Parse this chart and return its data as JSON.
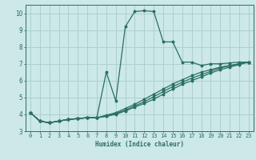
{
  "xlabel": "Humidex (Indice chaleur)",
  "bg_color": "#cce8e8",
  "grid_color": "#aacccc",
  "line_color": "#2a7060",
  "xlim": [
    -0.5,
    23.5
  ],
  "ylim": [
    3,
    10.5
  ],
  "yticks": [
    3,
    4,
    5,
    6,
    7,
    8,
    9,
    10
  ],
  "xticks": [
    0,
    1,
    2,
    3,
    4,
    5,
    6,
    7,
    8,
    9,
    10,
    11,
    12,
    13,
    14,
    15,
    16,
    17,
    18,
    19,
    20,
    21,
    22,
    23
  ],
  "lines": [
    {
      "x": [
        0,
        1,
        2,
        3,
        4,
        5,
        6,
        7,
        8,
        9,
        10,
        11,
        12,
        13,
        14,
        15,
        16,
        17,
        18,
        19,
        20,
        21,
        22,
        23
      ],
      "y": [
        4.1,
        3.6,
        3.5,
        3.6,
        3.7,
        3.75,
        3.8,
        3.8,
        6.5,
        4.8,
        9.2,
        10.1,
        10.15,
        10.1,
        8.3,
        8.3,
        7.1,
        7.1,
        6.9,
        7.0,
        7.0,
        7.05,
        7.1,
        7.1
      ]
    },
    {
      "x": [
        0,
        1,
        2,
        3,
        4,
        5,
        6,
        7,
        8,
        9,
        10,
        11,
        12,
        13,
        14,
        15,
        16,
        17,
        18,
        19,
        20,
        21,
        22,
        23
      ],
      "y": [
        4.1,
        3.6,
        3.5,
        3.6,
        3.7,
        3.75,
        3.8,
        3.8,
        3.95,
        4.1,
        4.35,
        4.6,
        4.9,
        5.2,
        5.5,
        5.8,
        6.05,
        6.3,
        6.5,
        6.65,
        6.8,
        6.9,
        7.0,
        7.1
      ]
    },
    {
      "x": [
        0,
        1,
        2,
        3,
        4,
        5,
        6,
        7,
        8,
        9,
        10,
        11,
        12,
        13,
        14,
        15,
        16,
        17,
        18,
        19,
        20,
        21,
        22,
        23
      ],
      "y": [
        4.1,
        3.6,
        3.5,
        3.6,
        3.7,
        3.75,
        3.8,
        3.8,
        3.9,
        4.05,
        4.25,
        4.5,
        4.75,
        5.05,
        5.35,
        5.65,
        5.9,
        6.15,
        6.35,
        6.55,
        6.75,
        6.88,
        7.0,
        7.1
      ]
    },
    {
      "x": [
        0,
        1,
        2,
        3,
        4,
        5,
        6,
        7,
        8,
        9,
        10,
        11,
        12,
        13,
        14,
        15,
        16,
        17,
        18,
        19,
        20,
        21,
        22,
        23
      ],
      "y": [
        4.1,
        3.6,
        3.5,
        3.6,
        3.7,
        3.75,
        3.8,
        3.8,
        3.88,
        4.0,
        4.2,
        4.43,
        4.65,
        4.9,
        5.2,
        5.5,
        5.78,
        6.0,
        6.22,
        6.45,
        6.65,
        6.8,
        6.95,
        7.1
      ]
    }
  ]
}
